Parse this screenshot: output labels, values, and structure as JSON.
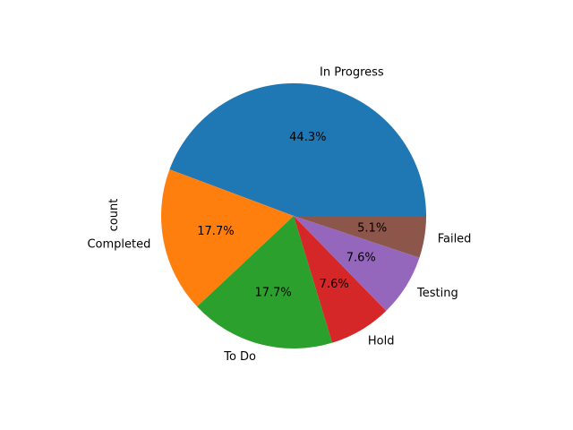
{
  "chart_data": {
    "type": "pie",
    "title": "",
    "ylabel": "count",
    "categories": [
      "In Progress",
      "Completed",
      "To Do",
      "Hold",
      "Testing",
      "Failed"
    ],
    "values": [
      44.3,
      17.7,
      17.7,
      7.6,
      7.6,
      5.1
    ],
    "percent_labels": [
      "44.3%",
      "17.7%",
      "17.7%",
      "7.6%",
      "7.6%",
      "5.1%"
    ],
    "colors": [
      "#1f77b4",
      "#ff7f0e",
      "#2ca02c",
      "#d62728",
      "#9467bd",
      "#8c564b"
    ],
    "start_angle_deg": 0,
    "direction": "counterclockwise",
    "legend": "none"
  }
}
